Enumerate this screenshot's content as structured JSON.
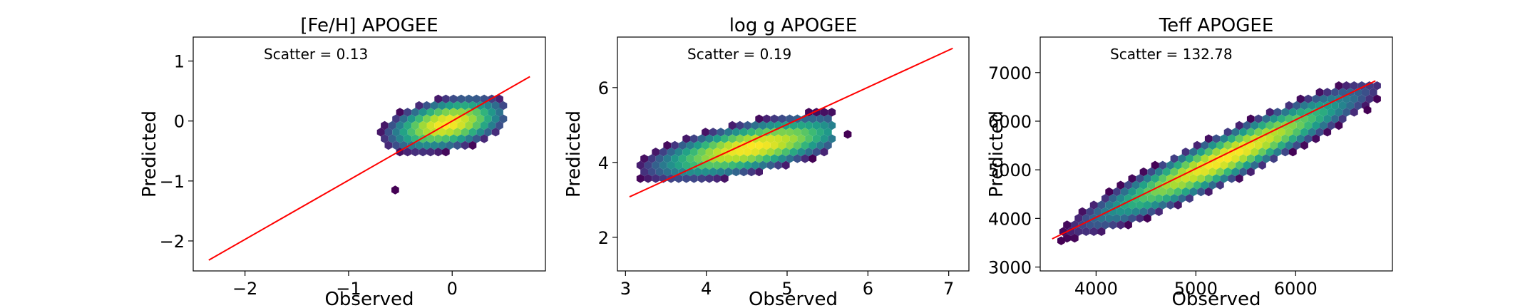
{
  "colors": {
    "fit_line": "#ff0000",
    "frame": "#000000",
    "viridis_low": "#440154",
    "viridis_mid": "#21918c",
    "viridis_high": "#fde725"
  },
  "chart_data": [
    {
      "type": "hexbin",
      "title": "[Fe/H] APOGEE",
      "xlabel": "Observed",
      "ylabel": "Predicted",
      "annotation": "Scatter = 0.13",
      "xlim": [
        -2.5,
        0.9
      ],
      "ylim": [
        -2.5,
        1.4
      ],
      "xticks": [
        -2,
        -1,
        0
      ],
      "xtick_labels": [
        "−2",
        "−1",
        "0"
      ],
      "yticks": [
        -2,
        -1,
        0,
        1
      ],
      "ytick_labels": [
        "−2",
        "−1",
        "0",
        "1"
      ],
      "fit_line": {
        "x": [
          -2.35,
          0.75
        ],
        "y": [
          -2.32,
          0.74
        ]
      },
      "density": {
        "center": [
          -0.05,
          -0.05
        ],
        "major_axis": [
          0.62,
          0.38
        ],
        "minor_axis": [
          -0.27,
          0.35
        ],
        "xrange": [
          -0.95,
          0.5
        ],
        "yrange": [
          -1.0,
          0.5
        ],
        "outliers": [
          [
            -0.55,
            -1.15
          ]
        ]
      }
    },
    {
      "type": "hexbin",
      "title": "log g APOGEE",
      "xlabel": "Observed",
      "ylabel": "Predicted",
      "annotation": "Scatter = 0.19",
      "xlim": [
        2.9,
        7.25
      ],
      "ylim": [
        1.1,
        7.35
      ],
      "xticks": [
        3,
        4,
        5,
        6,
        7
      ],
      "xtick_labels": [
        "3",
        "4",
        "5",
        "6",
        "7"
      ],
      "yticks": [
        2,
        4,
        6
      ],
      "ytick_labels": [
        "2",
        "4",
        "6"
      ],
      "fit_line": {
        "x": [
          3.05,
          7.05
        ],
        "y": [
          3.08,
          7.05
        ]
      },
      "density": {
        "center": [
          4.55,
          4.4
        ],
        "major_axis": [
          1.45,
          0.75
        ],
        "minor_axis": [
          -0.25,
          0.62
        ],
        "xrange": [
          3.2,
          5.55
        ],
        "yrange": [
          3.35,
          5.55
        ],
        "outliers": [
          [
            5.75,
            4.75
          ]
        ]
      }
    },
    {
      "type": "hexbin",
      "title": "Teff APOGEE",
      "xlabel": "Observed",
      "ylabel": "Predicted",
      "annotation": "Scatter = 132.78",
      "xlim": [
        3440,
        6970
      ],
      "ylim": [
        2920,
        7730
      ],
      "xticks": [
        4000,
        5000,
        6000
      ],
      "xtick_labels": [
        "4000",
        "5000",
        "6000"
      ],
      "yticks": [
        3000,
        4000,
        5000,
        6000,
        7000
      ],
      "ytick_labels": [
        "3000",
        "4000",
        "5000",
        "6000",
        "7000"
      ],
      "fit_line": {
        "x": [
          3560,
          6800
        ],
        "y": [
          3580,
          6830
        ]
      },
      "density": {
        "center": [
          5300,
          5250
        ],
        "major_axis": [
          1650,
          1650
        ],
        "minor_axis": [
          -250,
          330
        ],
        "xrange": [
          3560,
          6830
        ],
        "yrange": [
          3540,
          6820
        ],
        "outliers": [
          [
            3650,
            3540
          ],
          [
            6720,
            6230
          ]
        ]
      }
    }
  ]
}
